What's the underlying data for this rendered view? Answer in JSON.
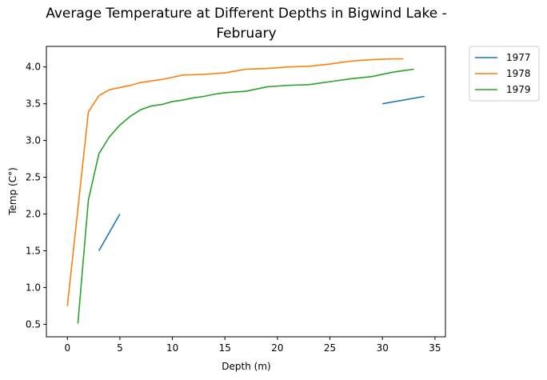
{
  "chart_data": {
    "type": "line",
    "title_line1": "Average Temperature at Different Depths in Bigwind Lake -",
    "title_line2": "February",
    "xlabel": "Depth (m)",
    "ylabel": "Temp (C°)",
    "xlim": [
      -2.0,
      36.0
    ],
    "ylim": [
      0.33,
      4.28
    ],
    "xticks": [
      0,
      5,
      10,
      15,
      20,
      25,
      30,
      35
    ],
    "yticks": [
      0.5,
      1.0,
      1.5,
      2.0,
      2.5,
      3.0,
      3.5,
      4.0
    ],
    "legend_position": "outside-top-right",
    "grid": false,
    "series": [
      {
        "name": "1977",
        "color": "#1f77b4",
        "segments": [
          [
            [
              3,
              1.5
            ],
            [
              5,
              2.0
            ]
          ],
          [
            [
              30,
              3.5
            ],
            [
              34,
              3.6
            ]
          ]
        ]
      },
      {
        "name": "1978",
        "color": "#ff7f0e",
        "segments": [
          [
            [
              0,
              0.75
            ],
            [
              2,
              3.39
            ],
            [
              3,
              3.61
            ],
            [
              4,
              3.69
            ],
            [
              5,
              3.72
            ],
            [
              6,
              3.75
            ],
            [
              7,
              3.79
            ],
            [
              8,
              3.81
            ],
            [
              9,
              3.83
            ],
            [
              10,
              3.86
            ],
            [
              11,
              3.89
            ],
            [
              12,
              3.895
            ],
            [
              13,
              3.9
            ],
            [
              14,
              3.91
            ],
            [
              15,
              3.92
            ],
            [
              16,
              3.945
            ],
            [
              17,
              3.97
            ],
            [
              18,
              3.975
            ],
            [
              19,
              3.98
            ],
            [
              20,
              3.99
            ],
            [
              21,
              4.0
            ],
            [
              22,
              4.005
            ],
            [
              23,
              4.01
            ],
            [
              24,
              4.025
            ],
            [
              25,
              4.04
            ],
            [
              26,
              4.06
            ],
            [
              27,
              4.08
            ],
            [
              28,
              4.09
            ],
            [
              29,
              4.1
            ],
            [
              30,
              4.105
            ],
            [
              31,
              4.11
            ],
            [
              32,
              4.11
            ]
          ]
        ]
      },
      {
        "name": "1979",
        "color": "#2ca02c",
        "segments": [
          [
            [
              1,
              0.51
            ],
            [
              2,
              2.19
            ],
            [
              3,
              2.82
            ],
            [
              4,
              3.05
            ],
            [
              5,
              3.21
            ],
            [
              6,
              3.33
            ],
            [
              7,
              3.42
            ],
            [
              8,
              3.47
            ],
            [
              9,
              3.49
            ],
            [
              10,
              3.53
            ],
            [
              11,
              3.55
            ],
            [
              12,
              3.58
            ],
            [
              13,
              3.6
            ],
            [
              14,
              3.63
            ],
            [
              15,
              3.65
            ],
            [
              16,
              3.66
            ],
            [
              17,
              3.67
            ],
            [
              18,
              3.7
            ],
            [
              19,
              3.73
            ],
            [
              20,
              3.74
            ],
            [
              21,
              3.75
            ],
            [
              22,
              3.755
            ],
            [
              23,
              3.76
            ],
            [
              24,
              3.78
            ],
            [
              25,
              3.8
            ],
            [
              26,
              3.82
            ],
            [
              27,
              3.84
            ],
            [
              28,
              3.855
            ],
            [
              29,
              3.87
            ],
            [
              30,
              3.9
            ],
            [
              31,
              3.93
            ],
            [
              32,
              3.95
            ],
            [
              33,
              3.97
            ]
          ]
        ]
      }
    ]
  }
}
